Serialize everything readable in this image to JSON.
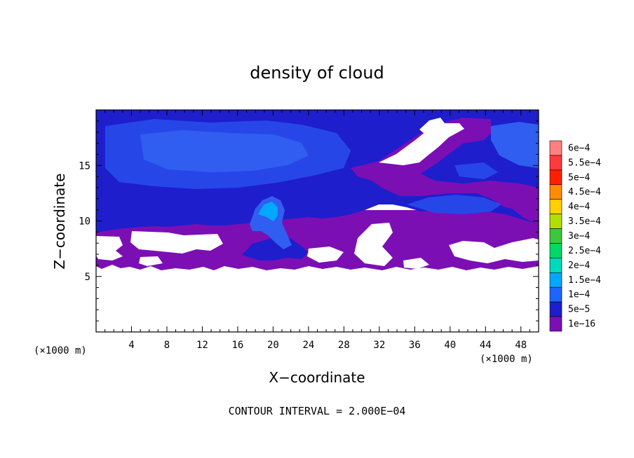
{
  "chart_data": {
    "type": "heatmap",
    "title": "density of cloud",
    "xlabel": "X−coordinate",
    "ylabel": "Z−coordinate",
    "x_unit": "(×1000 m)",
    "y_unit": "(×1000 m)",
    "xlim": [
      0,
      50
    ],
    "ylim": [
      0,
      20
    ],
    "x_ticks": [
      4,
      8,
      12,
      16,
      20,
      24,
      28,
      32,
      36,
      40,
      44,
      48
    ],
    "y_ticks": [
      5,
      10,
      15
    ],
    "footer": "CONTOUR INTERVAL = 2.000E−04",
    "colorbar": {
      "levels": [
        {
          "label": "6e−4",
          "color": "#ff8080"
        },
        {
          "label": "5.5e−4",
          "color": "#ff3a3a"
        },
        {
          "label": "5e−4",
          "color": "#ff2000"
        },
        {
          "label": "4.5e−4",
          "color": "#ff8c00"
        },
        {
          "label": "4e−4",
          "color": "#ffd000"
        },
        {
          "label": "3.5e−4",
          "color": "#b0e000"
        },
        {
          "label": "3e−4",
          "color": "#3cc83c"
        },
        {
          "label": "2.5e−4",
          "color": "#00d86a"
        },
        {
          "label": "2e−4",
          "color": "#00d8c0"
        },
        {
          "label": "1.5e−4",
          "color": "#00a8ff"
        },
        {
          "label": "1e−4",
          "color": "#1e64ff"
        },
        {
          "label": "5e−5",
          "color": "#1e1ecd"
        },
        {
          "label": "1e−16",
          "color": "#7b0fb4"
        }
      ]
    },
    "regions": [
      {
        "name": "upper-cloud-layer",
        "z_range": [
          9.5,
          20
        ],
        "x_range": [
          0,
          50
        ],
        "level": "5e−5"
      },
      {
        "name": "cloud-core",
        "z_range": [
          7,
          13
        ],
        "x_range": [
          17,
          24
        ],
        "level": "1e−4"
      },
      {
        "name": "low-cloud-band",
        "z_range": [
          5.5,
          9
        ],
        "x_range": [
          0,
          50
        ],
        "level": "1e−16"
      }
    ]
  }
}
